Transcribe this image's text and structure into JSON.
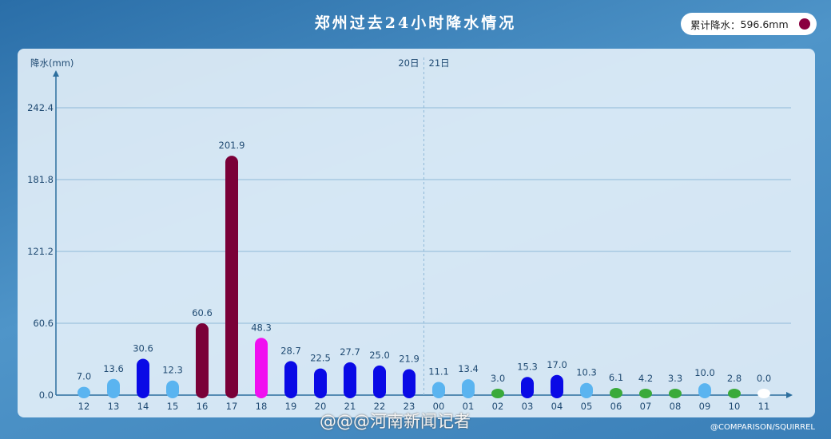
{
  "header": {
    "title": "郑州过去24小时降水情况",
    "badge_label": "累计降水：",
    "badge_value": "596.6mm",
    "badge_dot_color": "#8a0040"
  },
  "chart_data": {
    "type": "bar",
    "title": "郑州过去24小时降水情况",
    "ylabel": "降水(mm)",
    "xlabel": "",
    "ylim": [
      0,
      242.4
    ],
    "yticks": [
      "0.0",
      "60.6",
      "121.2",
      "181.8",
      "242.4"
    ],
    "grid": true,
    "day_divider": {
      "after_category": "23",
      "left_label": "20日",
      "right_label": "21日"
    },
    "categories": [
      "12",
      "13",
      "14",
      "15",
      "16",
      "17",
      "18",
      "19",
      "20",
      "21",
      "22",
      "23",
      "00",
      "01",
      "02",
      "03",
      "04",
      "05",
      "06",
      "07",
      "08",
      "09",
      "10",
      "11"
    ],
    "values": [
      7.0,
      13.6,
      30.6,
      12.3,
      60.6,
      201.9,
      48.3,
      28.7,
      22.5,
      27.7,
      25.0,
      21.9,
      11.1,
      13.4,
      3.0,
      15.3,
      17.0,
      10.3,
      6.1,
      4.2,
      3.3,
      10.0,
      2.8,
      0.0
    ],
    "value_labels": [
      "7.0",
      "13.6",
      "30.6",
      "12.3",
      "60.6",
      "201.9",
      "48.3",
      "28.7",
      "22.5",
      "27.7",
      "25.0",
      "21.9",
      "11.1",
      "13.4",
      "3.0",
      "15.3",
      "17.0",
      "10.3",
      "6.1",
      "4.2",
      "3.3",
      "10.0",
      "2.8",
      "0.0"
    ],
    "bar_colors": [
      "#5ab4f0",
      "#5ab4f0",
      "#0a0ae6",
      "#5ab4f0",
      "#7a0038",
      "#7a0038",
      "#f010f0",
      "#0a0ae6",
      "#0a0ae6",
      "#0a0ae6",
      "#0a0ae6",
      "#0a0ae6",
      "#5ab4f0",
      "#5ab4f0",
      "#3aaa3a",
      "#0a0ae6",
      "#0a0ae6",
      "#5ab4f0",
      "#3aaa3a",
      "#3aaa3a",
      "#3aaa3a",
      "#5ab4f0",
      "#3aaa3a",
      "#ffffff"
    ]
  },
  "footer": {
    "watermark": "@@@河南新闻记者",
    "credit": "@COMPARISON/SQUIRREL"
  }
}
